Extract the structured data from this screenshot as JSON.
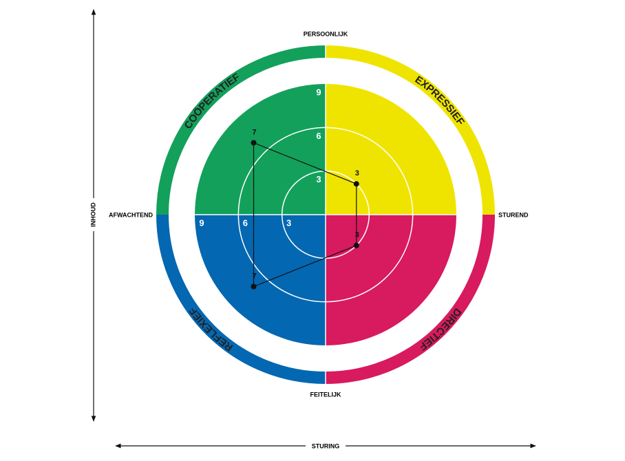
{
  "chart_data": {
    "type": "radar",
    "categories": [
      "COÖPERATIEF",
      "EXPRESSIEF",
      "DIRECTIEF",
      "REFLEXIEF"
    ],
    "colors": [
      "#13a05b",
      "#efe400",
      "#d81a5e",
      "#0467b2"
    ],
    "values": [
      7,
      3,
      3,
      7
    ],
    "rlim": [
      0,
      9
    ],
    "rticks": [
      3,
      6,
      9
    ],
    "axis_labels": {
      "top": "PERSOONLIJK",
      "bottom": "FEITELIJK",
      "right": "STUREND",
      "left": "AFWACHTEND"
    },
    "y_label": "INHOUD",
    "x_label": "STURING"
  }
}
